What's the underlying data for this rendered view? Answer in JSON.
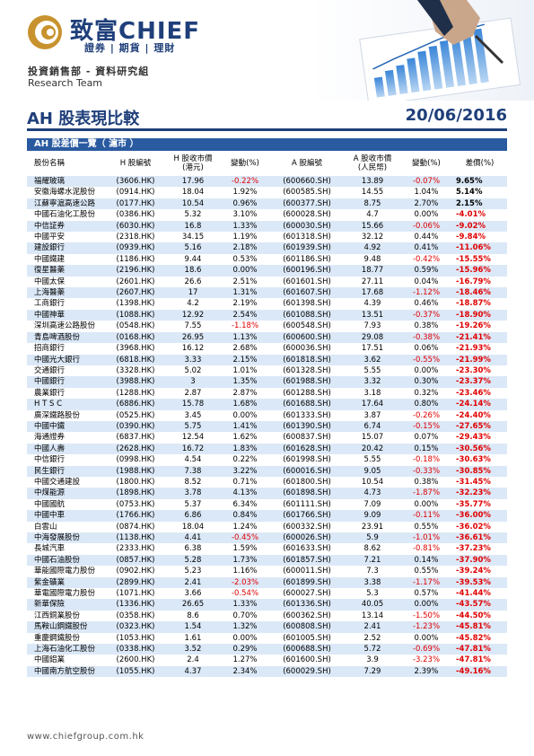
{
  "brand": {
    "name": "致富CHIEF",
    "subtitle": "證券 | 期貨 | 理財",
    "department": "投資銷售部 - 資料研究組",
    "team": "Research Team",
    "accent": "#1f3f7a",
    "gold": "#c8922e"
  },
  "report": {
    "title": "AH 股表現比較",
    "date": "20/06/2016",
    "section": "AH 股差價一覽（ 滬市 ）"
  },
  "table": {
    "columns": [
      "股份名稱",
      "H 股編號",
      "H 股收市價\n(港元)",
      "變動(%)",
      "A 股編號",
      "A 股收市價\n(人民幣)",
      "變動(%)",
      "差價(%)"
    ],
    "rows": [
      [
        "福耀玻璃",
        "(3606.HK)",
        "17.96",
        "-0.22%",
        "(600660.SH)",
        "13.89",
        "-0.07%",
        "9.65%"
      ],
      [
        "安徽海螺水泥股份",
        "(0914.HK)",
        "18.04",
        "1.92%",
        "(600585.SH)",
        "14.55",
        "1.04%",
        "5.14%"
      ],
      [
        "江蘇寧滬高速公路",
        "(0177.HK)",
        "10.54",
        "0.96%",
        "(600377.SH)",
        "8.75",
        "2.70%",
        "2.15%"
      ],
      [
        "中國石油化工股份",
        "(0386.HK)",
        "5.32",
        "3.10%",
        "(600028.SH)",
        "4.7",
        "0.00%",
        "-4.01%"
      ],
      [
        "中信証券",
        "(6030.HK)",
        "16.8",
        "1.33%",
        "(600030.SH)",
        "15.66",
        "-0.06%",
        "-9.02%"
      ],
      [
        "中國平安",
        "(2318.HK)",
        "34.15",
        "1.19%",
        "(601318.SH)",
        "32.12",
        "0.44%",
        "-9.84%"
      ],
      [
        "建設銀行",
        "(0939.HK)",
        "5.16",
        "2.18%",
        "(601939.SH)",
        "4.92",
        "0.41%",
        "-11.06%"
      ],
      [
        "中國鐵建",
        "(1186.HK)",
        "9.44",
        "0.53%",
        "(601186.SH)",
        "9.48",
        "-0.42%",
        "-15.55%"
      ],
      [
        "復星醫藥",
        "(2196.HK)",
        "18.6",
        "0.00%",
        "(600196.SH)",
        "18.77",
        "0.59%",
        "-15.96%"
      ],
      [
        "中國太保",
        "(2601.HK)",
        "26.6",
        "2.51%",
        "(601601.SH)",
        "27.11",
        "0.04%",
        "-16.79%"
      ],
      [
        "上海醫藥",
        "(2607.HK)",
        "17",
        "1.31%",
        "(601607.SH)",
        "17.68",
        "-1.12%",
        "-18.46%"
      ],
      [
        "工商銀行",
        "(1398.HK)",
        "4.2",
        "2.19%",
        "(601398.SH)",
        "4.39",
        "0.46%",
        "-18.87%"
      ],
      [
        "中國神華",
        "(1088.HK)",
        "12.92",
        "2.54%",
        "(601088.SH)",
        "13.51",
        "-0.37%",
        "-18.90%"
      ],
      [
        "深圳高速公路股份",
        "(0548.HK)",
        "7.55",
        "-1.18%",
        "(600548.SH)",
        "7.93",
        "0.38%",
        "-19.26%"
      ],
      [
        "青島啤酒股份",
        "(0168.HK)",
        "26.95",
        "1.13%",
        "(600600.SH)",
        "29.08",
        "-0.38%",
        "-21.41%"
      ],
      [
        "招商銀行",
        "(3968.HK)",
        "16.12",
        "2.68%",
        "(600036.SH)",
        "17.51",
        "0.06%",
        "-21.93%"
      ],
      [
        "中國光大銀行",
        "(6818.HK)",
        "3.33",
        "2.15%",
        "(601818.SH)",
        "3.62",
        "-0.55%",
        "-21.99%"
      ],
      [
        "交通銀行",
        "(3328.HK)",
        "5.02",
        "1.01%",
        "(601328.SH)",
        "5.55",
        "0.00%",
        "-23.30%"
      ],
      [
        "中國銀行",
        "(3988.HK)",
        "3",
        "1.35%",
        "(601988.SH)",
        "3.32",
        "0.30%",
        "-23.37%"
      ],
      [
        "農業銀行",
        "(1288.HK)",
        "2.87",
        "2.87%",
        "(601288.SH)",
        "3.18",
        "0.32%",
        "-23.46%"
      ],
      [
        "H T S C",
        "(6886.HK)",
        "15.78",
        "1.68%",
        "(601688.SH)",
        "17.64",
        "0.80%",
        "-24.14%"
      ],
      [
        "廣深鐵路股份",
        "(0525.HK)",
        "3.45",
        "0.00%",
        "(601333.SH)",
        "3.87",
        "-0.26%",
        "-24.40%"
      ],
      [
        "中國中鐵",
        "(0390.HK)",
        "5.75",
        "1.41%",
        "(601390.SH)",
        "6.74",
        "-0.15%",
        "-27.65%"
      ],
      [
        "海通證券",
        "(6837.HK)",
        "12.54",
        "1.62%",
        "(600837.SH)",
        "15.07",
        "0.07%",
        "-29.43%"
      ],
      [
        "中國人壽",
        "(2628.HK)",
        "16.72",
        "1.83%",
        "(601628.SH)",
        "20.42",
        "0.15%",
        "-30.56%"
      ],
      [
        "中信銀行",
        "(0998.HK)",
        "4.54",
        "0.22%",
        "(601998.SH)",
        "5.55",
        "-0.18%",
        "-30.63%"
      ],
      [
        "民生銀行",
        "(1988.HK)",
        "7.38",
        "3.22%",
        "(600016.SH)",
        "9.05",
        "-0.33%",
        "-30.85%"
      ],
      [
        "中國交通建設",
        "(1800.HK)",
        "8.52",
        "0.71%",
        "(601800.SH)",
        "10.54",
        "0.38%",
        "-31.45%"
      ],
      [
        "中煤能源",
        "(1898.HK)",
        "3.78",
        "4.13%",
        "(601898.SH)",
        "4.73",
        "-1.87%",
        "-32.23%"
      ],
      [
        "中國國航",
        "(0753.HK)",
        "5.37",
        "6.34%",
        "(601111.SH)",
        "7.09",
        "0.00%",
        "-35.77%"
      ],
      [
        "中國中車",
        "(1766.HK)",
        "6.86",
        "0.84%",
        "(601766.SH)",
        "9.09",
        "-0.11%",
        "-36.00%"
      ],
      [
        "白雲山",
        "(0874.HK)",
        "18.04",
        "1.24%",
        "(600332.SH)",
        "23.91",
        "0.55%",
        "-36.02%"
      ],
      [
        "中海發展股份",
        "(1138.HK)",
        "4.41",
        "-0.45%",
        "(600026.SH)",
        "5.9",
        "-1.01%",
        "-36.61%"
      ],
      [
        "長城汽車",
        "(2333.HK)",
        "6.38",
        "1.59%",
        "(601633.SH)",
        "8.62",
        "-0.81%",
        "-37.23%"
      ],
      [
        "中國石油股份",
        "(0857.HK)",
        "5.28",
        "1.73%",
        "(601857.SH)",
        "7.21",
        "0.14%",
        "-37.90%"
      ],
      [
        "華能國際電力股份",
        "(0902.HK)",
        "5.23",
        "1.16%",
        "(600011.SH)",
        "7.3",
        "0.55%",
        "-39.24%"
      ],
      [
        "紫金礦業",
        "(2899.HK)",
        "2.41",
        "-2.03%",
        "(601899.SH)",
        "3.38",
        "-1.17%",
        "-39.53%"
      ],
      [
        "華電國際電力股份",
        "(1071.HK)",
        "3.66",
        "-0.54%",
        "(600027.SH)",
        "5.3",
        "0.57%",
        "-41.44%"
      ],
      [
        "新華保險",
        "(1336.HK)",
        "26.65",
        "1.33%",
        "(601336.SH)",
        "40.05",
        "0.00%",
        "-43.57%"
      ],
      [
        "江西銅業股份",
        "(0358.HK)",
        "8.6",
        "0.70%",
        "(600362.SH)",
        "13.14",
        "-1.50%",
        "-44.50%"
      ],
      [
        "馬鞍山鋼鐵股份",
        "(0323.HK)",
        "1.54",
        "1.32%",
        "(600808.SH)",
        "2.41",
        "-1.23%",
        "-45.81%"
      ],
      [
        "重慶鋼鐵股份",
        "(1053.HK)",
        "1.61",
        "0.00%",
        "(601005.SH)",
        "2.52",
        "0.00%",
        "-45.82%"
      ],
      [
        "上海石油化工股份",
        "(0338.HK)",
        "3.52",
        "0.29%",
        "(600688.SH)",
        "5.72",
        "-0.69%",
        "-47.81%"
      ],
      [
        "中國鋁業",
        "(2600.HK)",
        "2.4",
        "1.27%",
        "(601600.SH)",
        "3.9",
        "-3.23%",
        "-47.81%"
      ],
      [
        "中國南方航空股份",
        "(1055.HK)",
        "4.37",
        "2.34%",
        "(600029.SH)",
        "7.29",
        "2.39%",
        "-49.16%"
      ]
    ]
  },
  "footer": {
    "url": "www.chiefgroup.com.hk"
  }
}
